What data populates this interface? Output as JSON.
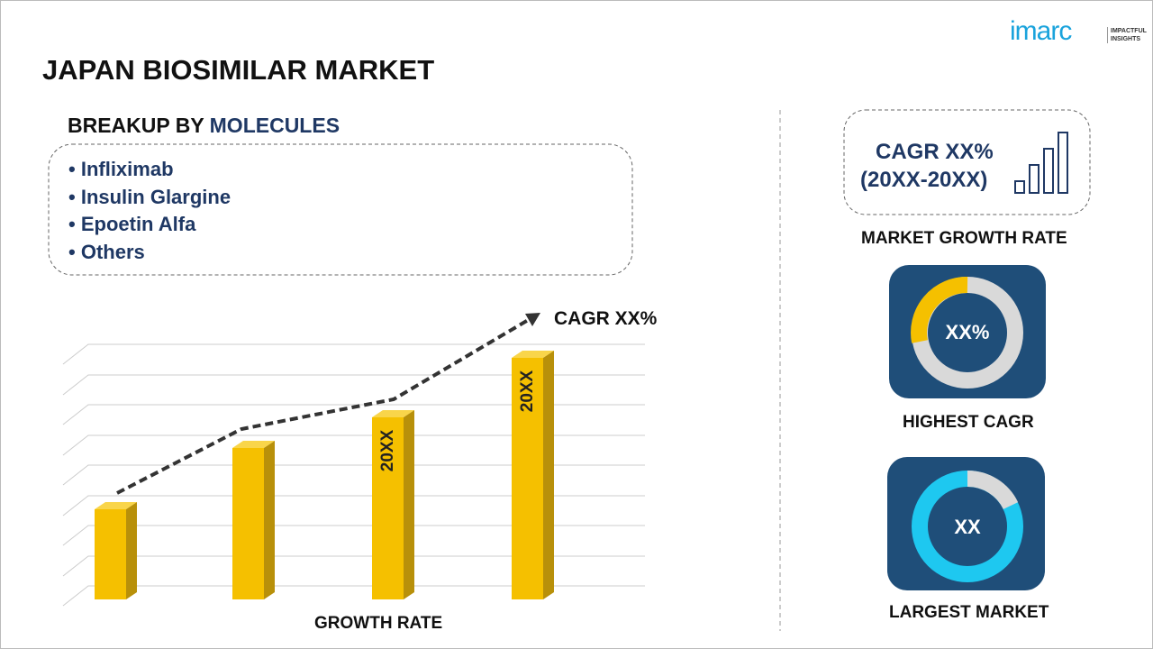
{
  "logo": {
    "brand": "imarc",
    "tagline": [
      "IMPACTFUL",
      "INSIGHTS"
    ]
  },
  "header": {
    "title": "JAPAN BIOSIMILAR MARKET"
  },
  "breakup": {
    "heading": "BREAKUP BY",
    "dimension": "MOLECULES",
    "items": [
      "Infliximab",
      "Insulin Glargine",
      "Epoetin Alfa",
      "Others"
    ]
  },
  "growth_chart": {
    "trend_label": "CAGR XX%",
    "bar_labels": [
      "20XX",
      "20XX"
    ],
    "axis_label": "GROWTH RATE"
  },
  "market_growth": {
    "cagr": "CAGR XX%",
    "period": "(20XX-20XX)",
    "label": "MARKET GROWTH RATE"
  },
  "highest_cagr": {
    "value": "XX%",
    "label": "HIGHEST CAGR"
  },
  "largest_market": {
    "value": "XX",
    "label": "LARGEST MARKET"
  }
}
